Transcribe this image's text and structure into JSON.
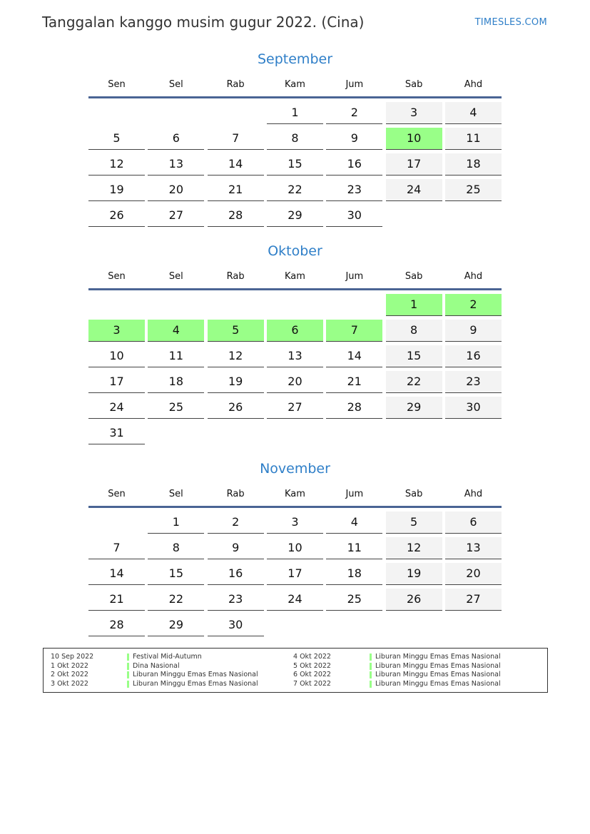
{
  "header": {
    "title": "Tanggalan kanggo musim gugur 2022. (Cina)",
    "brand": "TIMESLES.COM"
  },
  "weekdays": [
    "Sen",
    "Sel",
    "Rab",
    "Kam",
    "Jum",
    "Sab",
    "Ahd"
  ],
  "colors": {
    "accent": "#2f7fc8",
    "holiday": "#99ff88",
    "weekend": "#f3f3f3",
    "header_line": "#4a6494"
  },
  "months": [
    {
      "name": "September",
      "offset": 3,
      "days": 30,
      "holidays": [
        10
      ]
    },
    {
      "name": "Oktober",
      "offset": 5,
      "days": 31,
      "holidays": [
        1,
        2,
        3,
        4,
        5,
        6,
        7
      ]
    },
    {
      "name": "November",
      "offset": 1,
      "days": 30,
      "holidays": []
    }
  ],
  "legend": [
    {
      "date": "10 Sep 2022",
      "name": "Festival Mid-Autumn"
    },
    {
      "date": "1 Okt 2022",
      "name": "Dina Nasional"
    },
    {
      "date": "2 Okt 2022",
      "name": "Liburan Minggu Emas Emas Nasional"
    },
    {
      "date": "3 Okt 2022",
      "name": "Liburan Minggu Emas Emas Nasional"
    },
    {
      "date": "4 Okt 2022",
      "name": "Liburan Minggu Emas Emas Nasional"
    },
    {
      "date": "5 Okt 2022",
      "name": "Liburan Minggu Emas Emas Nasional"
    },
    {
      "date": "6 Okt 2022",
      "name": "Liburan Minggu Emas Emas Nasional"
    },
    {
      "date": "7 Okt 2022",
      "name": "Liburan Minggu Emas Emas Nasional"
    }
  ]
}
